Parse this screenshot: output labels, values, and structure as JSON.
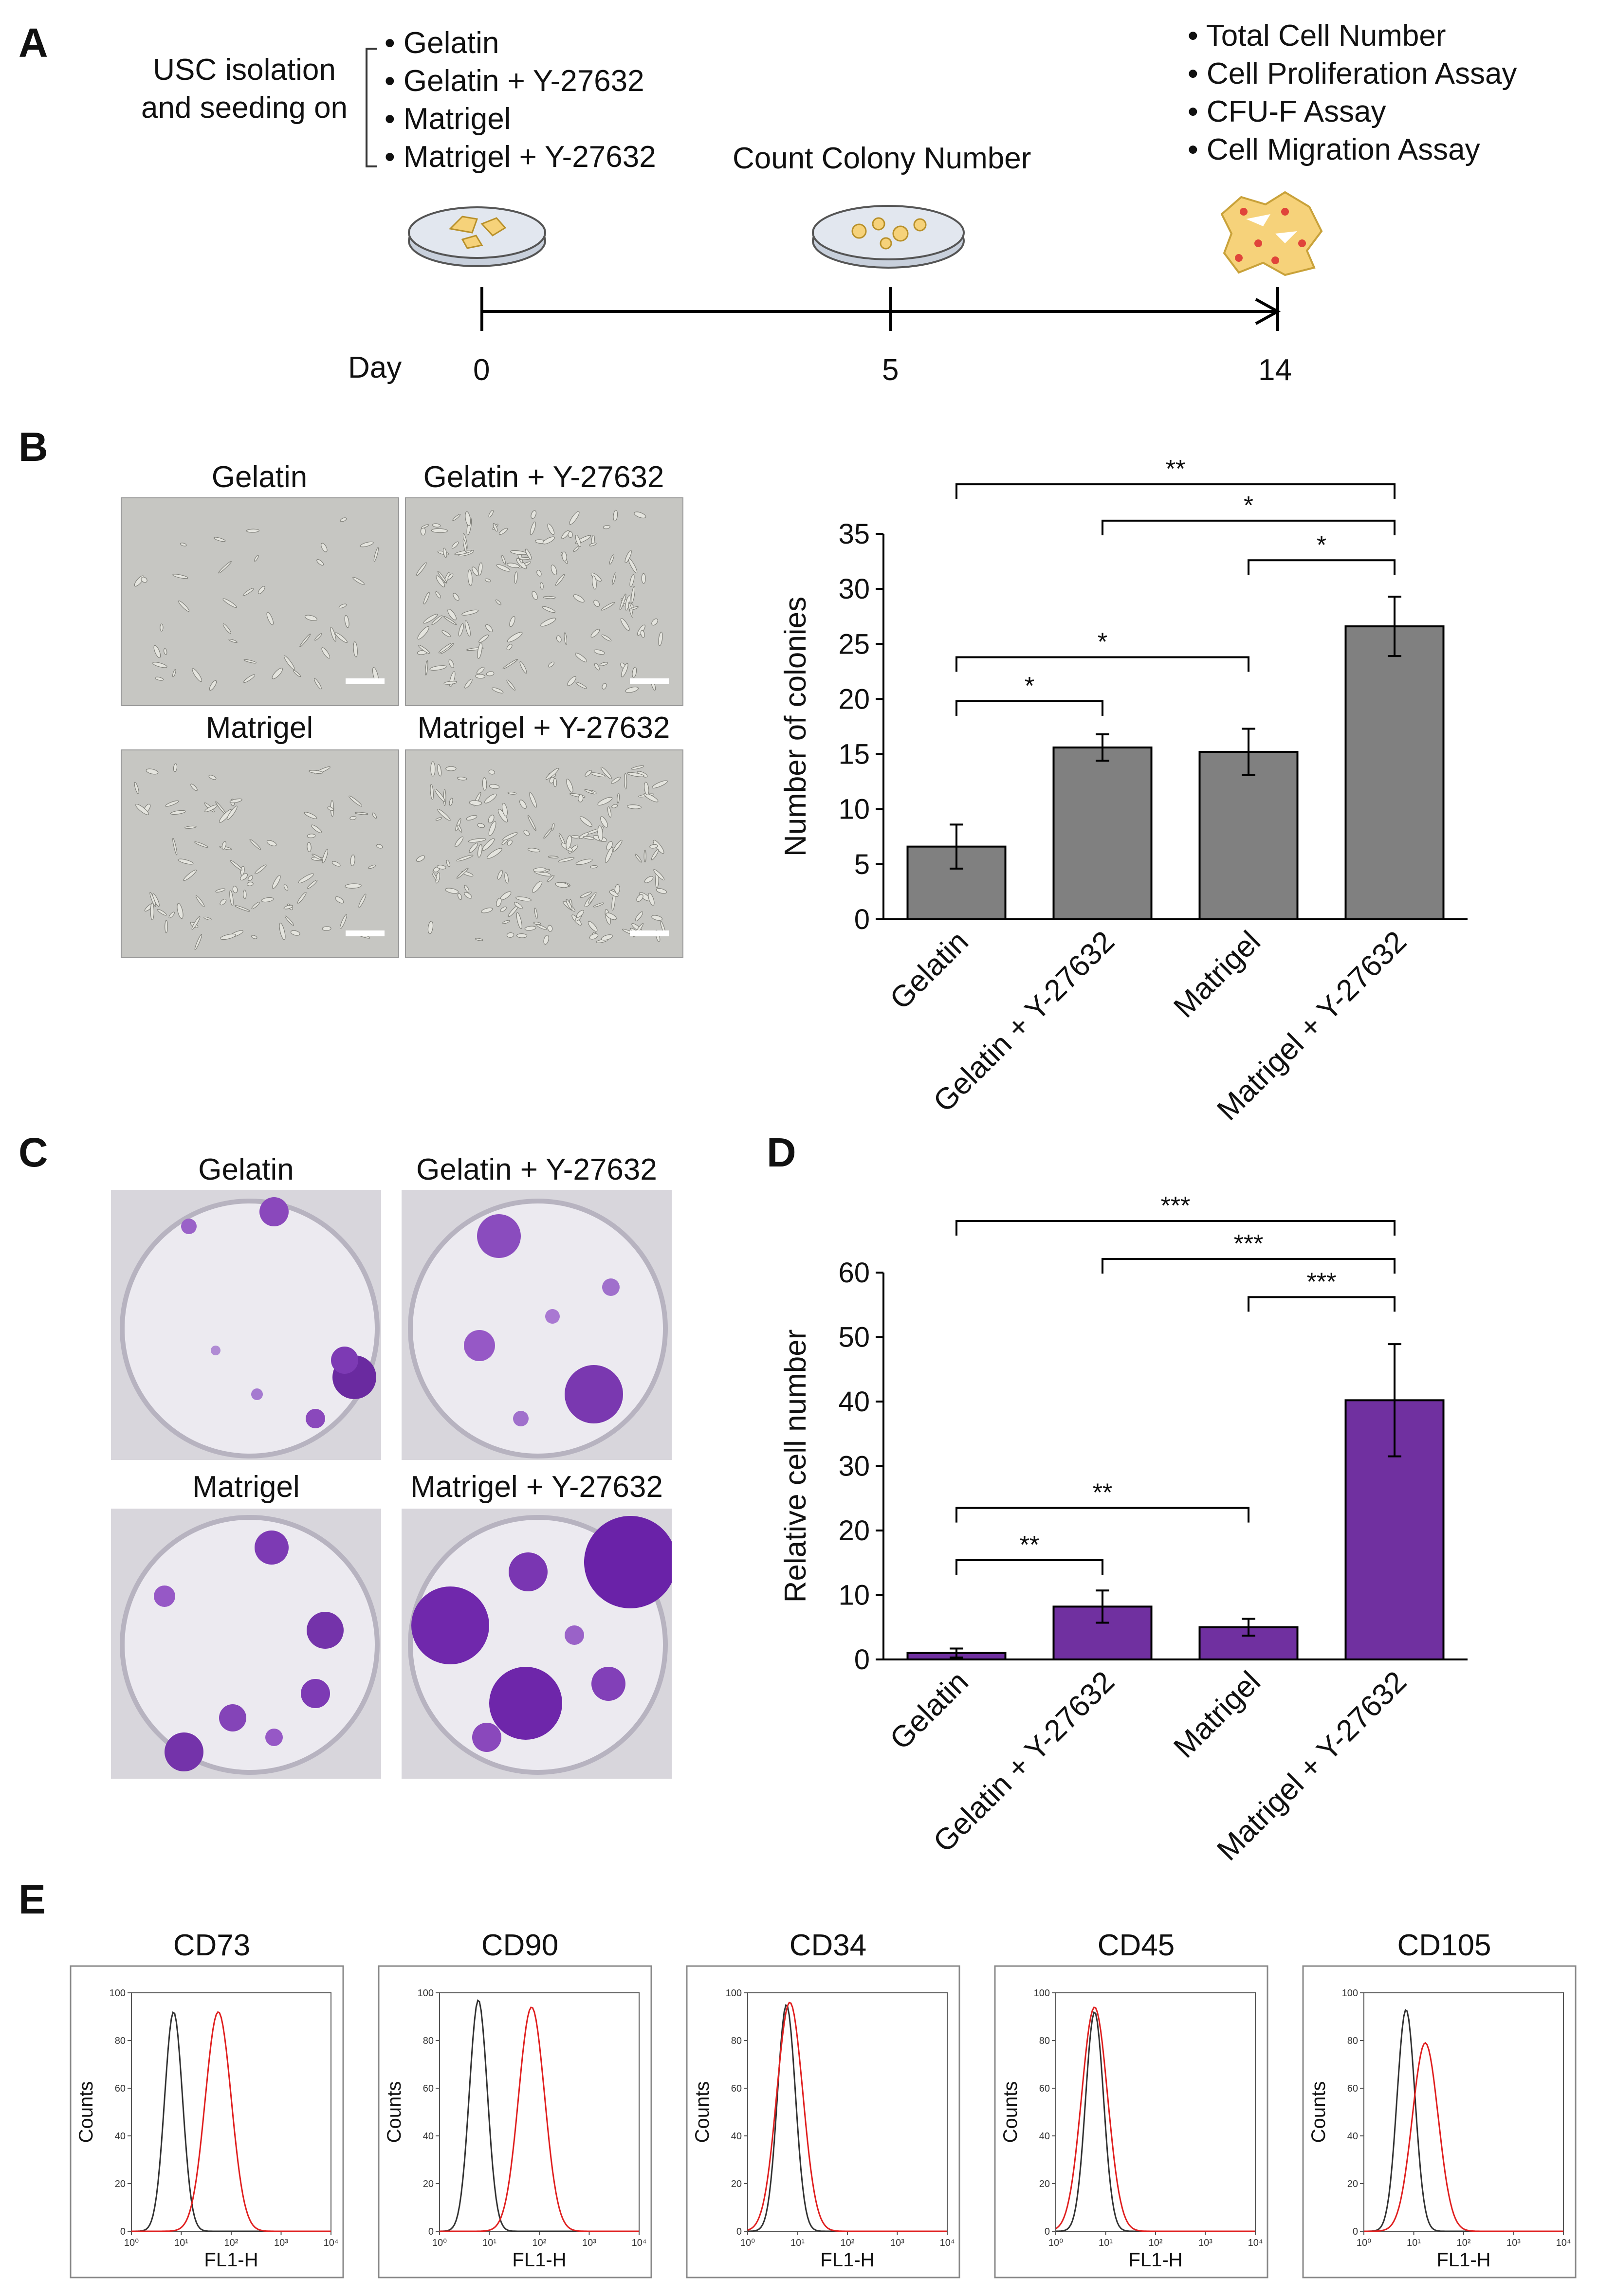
{
  "panels": {
    "a": {
      "letter": "A",
      "isolation_text": [
        "USC isolation",
        "and seeding on"
      ],
      "substrates": [
        "• Gelatin",
        "• Gelatin + Y-27632",
        "• Matrigel",
        "• Matrigel + Y-27632"
      ],
      "count_text": "Count Colony Number",
      "assays": [
        "• Total Cell Number",
        "• Cell Proliferation Assay",
        "• CFU-F Assay",
        "• Cell Migration Assay"
      ],
      "day_label": "Day",
      "days": [
        "0",
        "5",
        "14"
      ]
    },
    "b": {
      "letter": "B",
      "image_labels": [
        "Gelatin",
        "Gelatin + Y-27632",
        "Matrigel",
        "Matrigel + Y-27632"
      ]
    },
    "c": {
      "letter": "C",
      "image_labels": [
        "Gelatin",
        "Gelatin + Y-27632",
        "Matrigel",
        "Matrigel + Y-27632"
      ]
    },
    "d": {
      "letter": "D"
    },
    "e": {
      "letter": "E",
      "markers": [
        "CD73",
        "CD90",
        "CD34",
        "CD45",
        "CD105"
      ],
      "ylabel": "Counts",
      "xlabel": "FL1-H",
      "y_ticks": [
        "0",
        "20",
        "40",
        "60",
        "80",
        "100"
      ],
      "x_ticks": [
        "10⁰",
        "10¹",
        "10²",
        "10³",
        "10⁴"
      ]
    }
  },
  "colors": {
    "bar_b": "#808080",
    "bar_d": "#7030a0",
    "isotype": "#333333",
    "marker": "#e02020"
  },
  "chart_data": [
    {
      "id": "B",
      "type": "bar",
      "categories": [
        "Gelatin",
        "Gelatin + Y-27632",
        "Matrigel",
        "Matrigel + Y-27632"
      ],
      "values": [
        6.6,
        15.6,
        15.2,
        26.6
      ],
      "errors": [
        2.0,
        1.2,
        2.1,
        2.7
      ],
      "ylabel": "Number of colonies",
      "ylim": [
        0,
        35
      ],
      "yticks": [
        0,
        5,
        10,
        15,
        20,
        25,
        30,
        35
      ],
      "significance": [
        {
          "from": 0,
          "to": 1,
          "label": "*"
        },
        {
          "from": 0,
          "to": 2,
          "label": "*"
        },
        {
          "from": 2,
          "to": 3,
          "label": "*"
        },
        {
          "from": 1,
          "to": 3,
          "label": "*"
        },
        {
          "from": 0,
          "to": 3,
          "label": "**"
        }
      ]
    },
    {
      "id": "D",
      "type": "bar",
      "categories": [
        "Gelatin",
        "Gelatin + Y-27632",
        "Matrigel",
        "Matrigel + Y-27632"
      ],
      "values": [
        1.0,
        8.2,
        5.0,
        40.2
      ],
      "errors": [
        0.7,
        2.5,
        1.3,
        8.7
      ],
      "ylabel": "Relative cell number",
      "ylim": [
        0,
        60
      ],
      "yticks": [
        0,
        10,
        20,
        30,
        40,
        50,
        60
      ],
      "significance": [
        {
          "from": 0,
          "to": 1,
          "label": "**"
        },
        {
          "from": 0,
          "to": 2,
          "label": "**"
        },
        {
          "from": 2,
          "to": 3,
          "label": "***"
        },
        {
          "from": 1,
          "to": 3,
          "label": "***"
        },
        {
          "from": 0,
          "to": 3,
          "label": "***"
        }
      ]
    },
    {
      "id": "E",
      "type": "line",
      "subtype": "flow-cytometry-histogram",
      "xscale": "log",
      "xlim": [
        1,
        10000
      ],
      "ylim": [
        0,
        100
      ],
      "ylabel": "Counts",
      "xlabel": "FL1-H",
      "histograms": [
        {
          "marker": "CD73",
          "isotype": {
            "peak": 7,
            "height": 92
          },
          "stain": {
            "peak": 55,
            "height": 92
          }
        },
        {
          "marker": "CD90",
          "isotype": {
            "peak": 6,
            "height": 97
          },
          "stain": {
            "peak": 70,
            "height": 94
          }
        },
        {
          "marker": "CD34",
          "isotype": {
            "peak": 6,
            "height": 95
          },
          "stain": {
            "peak": 7,
            "height": 96
          }
        },
        {
          "marker": "CD45",
          "isotype": {
            "peak": 6,
            "height": 92
          },
          "stain": {
            "peak": 6,
            "height": 94
          }
        },
        {
          "marker": "CD105",
          "isotype": {
            "peak": 7,
            "height": 93
          },
          "stain": {
            "peak": 17,
            "height": 79
          }
        }
      ]
    }
  ]
}
